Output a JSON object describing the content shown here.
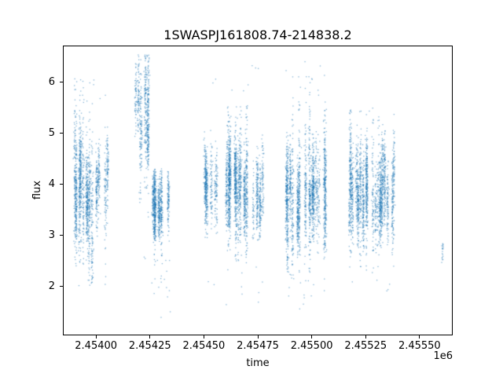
{
  "chart_data": {
    "type": "scatter",
    "title": "1SWASPJ161808.74-214838.2",
    "xlabel": "time",
    "ylabel": "flux",
    "x_offset_label": "1e6",
    "legend": "none",
    "grid": false,
    "marker_color": "#1f77b4",
    "marker_alpha": 0.55,
    "marker_size_px": 1.3,
    "xlim": [
      2453850,
      2455650
    ],
    "ylim": [
      1.05,
      6.7
    ],
    "xticks": {
      "values": [
        2454000,
        2454250,
        2454500,
        2454750,
        2455000,
        2455250,
        2455500
      ],
      "labels": [
        "2.45400",
        "2.45425",
        "2.45450",
        "2.45475",
        "2.45500",
        "2.45525",
        "2.45550"
      ]
    },
    "yticks": {
      "values": [
        2,
        3,
        4,
        5,
        6
      ],
      "labels": [
        "2",
        "3",
        "4",
        "5",
        "6"
      ]
    },
    "seed": 7,
    "clusters": [
      {
        "x_range": [
          2453900,
          2454055
        ],
        "nights": 20,
        "pts_per_night": [
          30,
          120
        ],
        "x_night_sigma": 2.5,
        "y_mean": 3.85,
        "y_mean_jitter": 0.55,
        "y_spread": 0.35,
        "y_spread_wide": 0.8,
        "wide_frac": 0.25,
        "y_clip": [
          2.35,
          5.15
        ],
        "y_clip_wide": [
          2.0,
          6.1
        ],
        "outliers": [
          {
            "count": 10,
            "y_range": [
              5.2,
              6.1
            ]
          }
        ]
      },
      {
        "x_range": [
          2454175,
          2454245
        ],
        "nights": 8,
        "pts_per_night": [
          40,
          130
        ],
        "x_night_sigma": 2.5,
        "y_mean": 5.4,
        "y_mean_jitter": 0.45,
        "y_spread": 0.4,
        "y_spread_wide": 0.75,
        "wide_frac": 0.3,
        "y_clip": [
          4.3,
          6.55
        ],
        "y_clip_wide": [
          3.4,
          6.55
        ],
        "outliers": [
          {
            "count": 6,
            "y_range": [
              2.2,
              4.2
            ]
          }
        ]
      },
      {
        "x_range": [
          2454255,
          2454345
        ],
        "nights": 10,
        "pts_per_night": [
          40,
          120
        ],
        "x_night_sigma": 2.5,
        "y_mean": 3.5,
        "y_mean_jitter": 0.3,
        "y_spread": 0.3,
        "y_spread_wide": 0.6,
        "wide_frac": 0.2,
        "y_clip": [
          2.85,
          4.25
        ],
        "y_clip_wide": [
          1.95,
          4.3
        ],
        "outliers": [
          {
            "count": 16,
            "y_range": [
              1.35,
              2.7
            ]
          }
        ]
      },
      {
        "x_range": [
          2454505,
          2454775
        ],
        "nights": 30,
        "pts_per_night": [
          40,
          140
        ],
        "x_night_sigma": 2.5,
        "y_mean": 3.9,
        "y_mean_jitter": 0.4,
        "y_spread": 0.4,
        "y_spread_wide": 0.7,
        "wide_frac": 0.25,
        "y_clip": [
          2.9,
          5.05
        ],
        "y_clip_wide": [
          2.2,
          5.6
        ],
        "outliers": [
          {
            "count": 10,
            "y_range": [
              1.5,
              2.6
            ]
          },
          {
            "count": 8,
            "y_range": [
              5.6,
              6.35
            ]
          }
        ]
      },
      {
        "x_range": [
          2454880,
          2455065
        ],
        "nights": 24,
        "pts_per_night": [
          40,
          140
        ],
        "x_night_sigma": 2.5,
        "y_mean": 3.85,
        "y_mean_jitter": 0.45,
        "y_spread": 0.42,
        "y_spread_wide": 0.8,
        "wide_frac": 0.25,
        "y_clip": [
          2.5,
          5.05
        ],
        "y_clip_wide": [
          1.9,
          6.45
        ],
        "outliers": [
          {
            "count": 12,
            "y_range": [
              1.55,
              2.3
            ]
          },
          {
            "count": 10,
            "y_range": [
              5.5,
              6.45
            ]
          }
        ]
      },
      {
        "x_range": [
          2455170,
          2455385
        ],
        "nights": 26,
        "pts_per_night": [
          40,
          130
        ],
        "x_night_sigma": 2.5,
        "y_mean": 3.9,
        "y_mean_jitter": 0.45,
        "y_spread": 0.4,
        "y_spread_wide": 0.7,
        "wide_frac": 0.2,
        "y_clip": [
          2.45,
          5.2
        ],
        "y_clip_wide": [
          2.0,
          5.5
        ],
        "outliers": [
          {
            "count": 8,
            "y_range": [
              1.9,
              2.4
            ]
          },
          {
            "count": 4,
            "y_range": [
              5.2,
              5.6
            ]
          }
        ]
      },
      {
        "x_range": [
          2455595,
          2455615
        ],
        "nights": 2,
        "pts_per_night": [
          5,
          10
        ],
        "x_night_sigma": 1.5,
        "y_mean": 2.7,
        "y_mean_jitter": 0.15,
        "y_spread": 0.15,
        "y_spread_wide": 0.15,
        "wide_frac": 0,
        "y_clip": [
          2.45,
          2.95
        ],
        "y_clip_wide": [
          2.45,
          2.95
        ]
      }
    ]
  }
}
